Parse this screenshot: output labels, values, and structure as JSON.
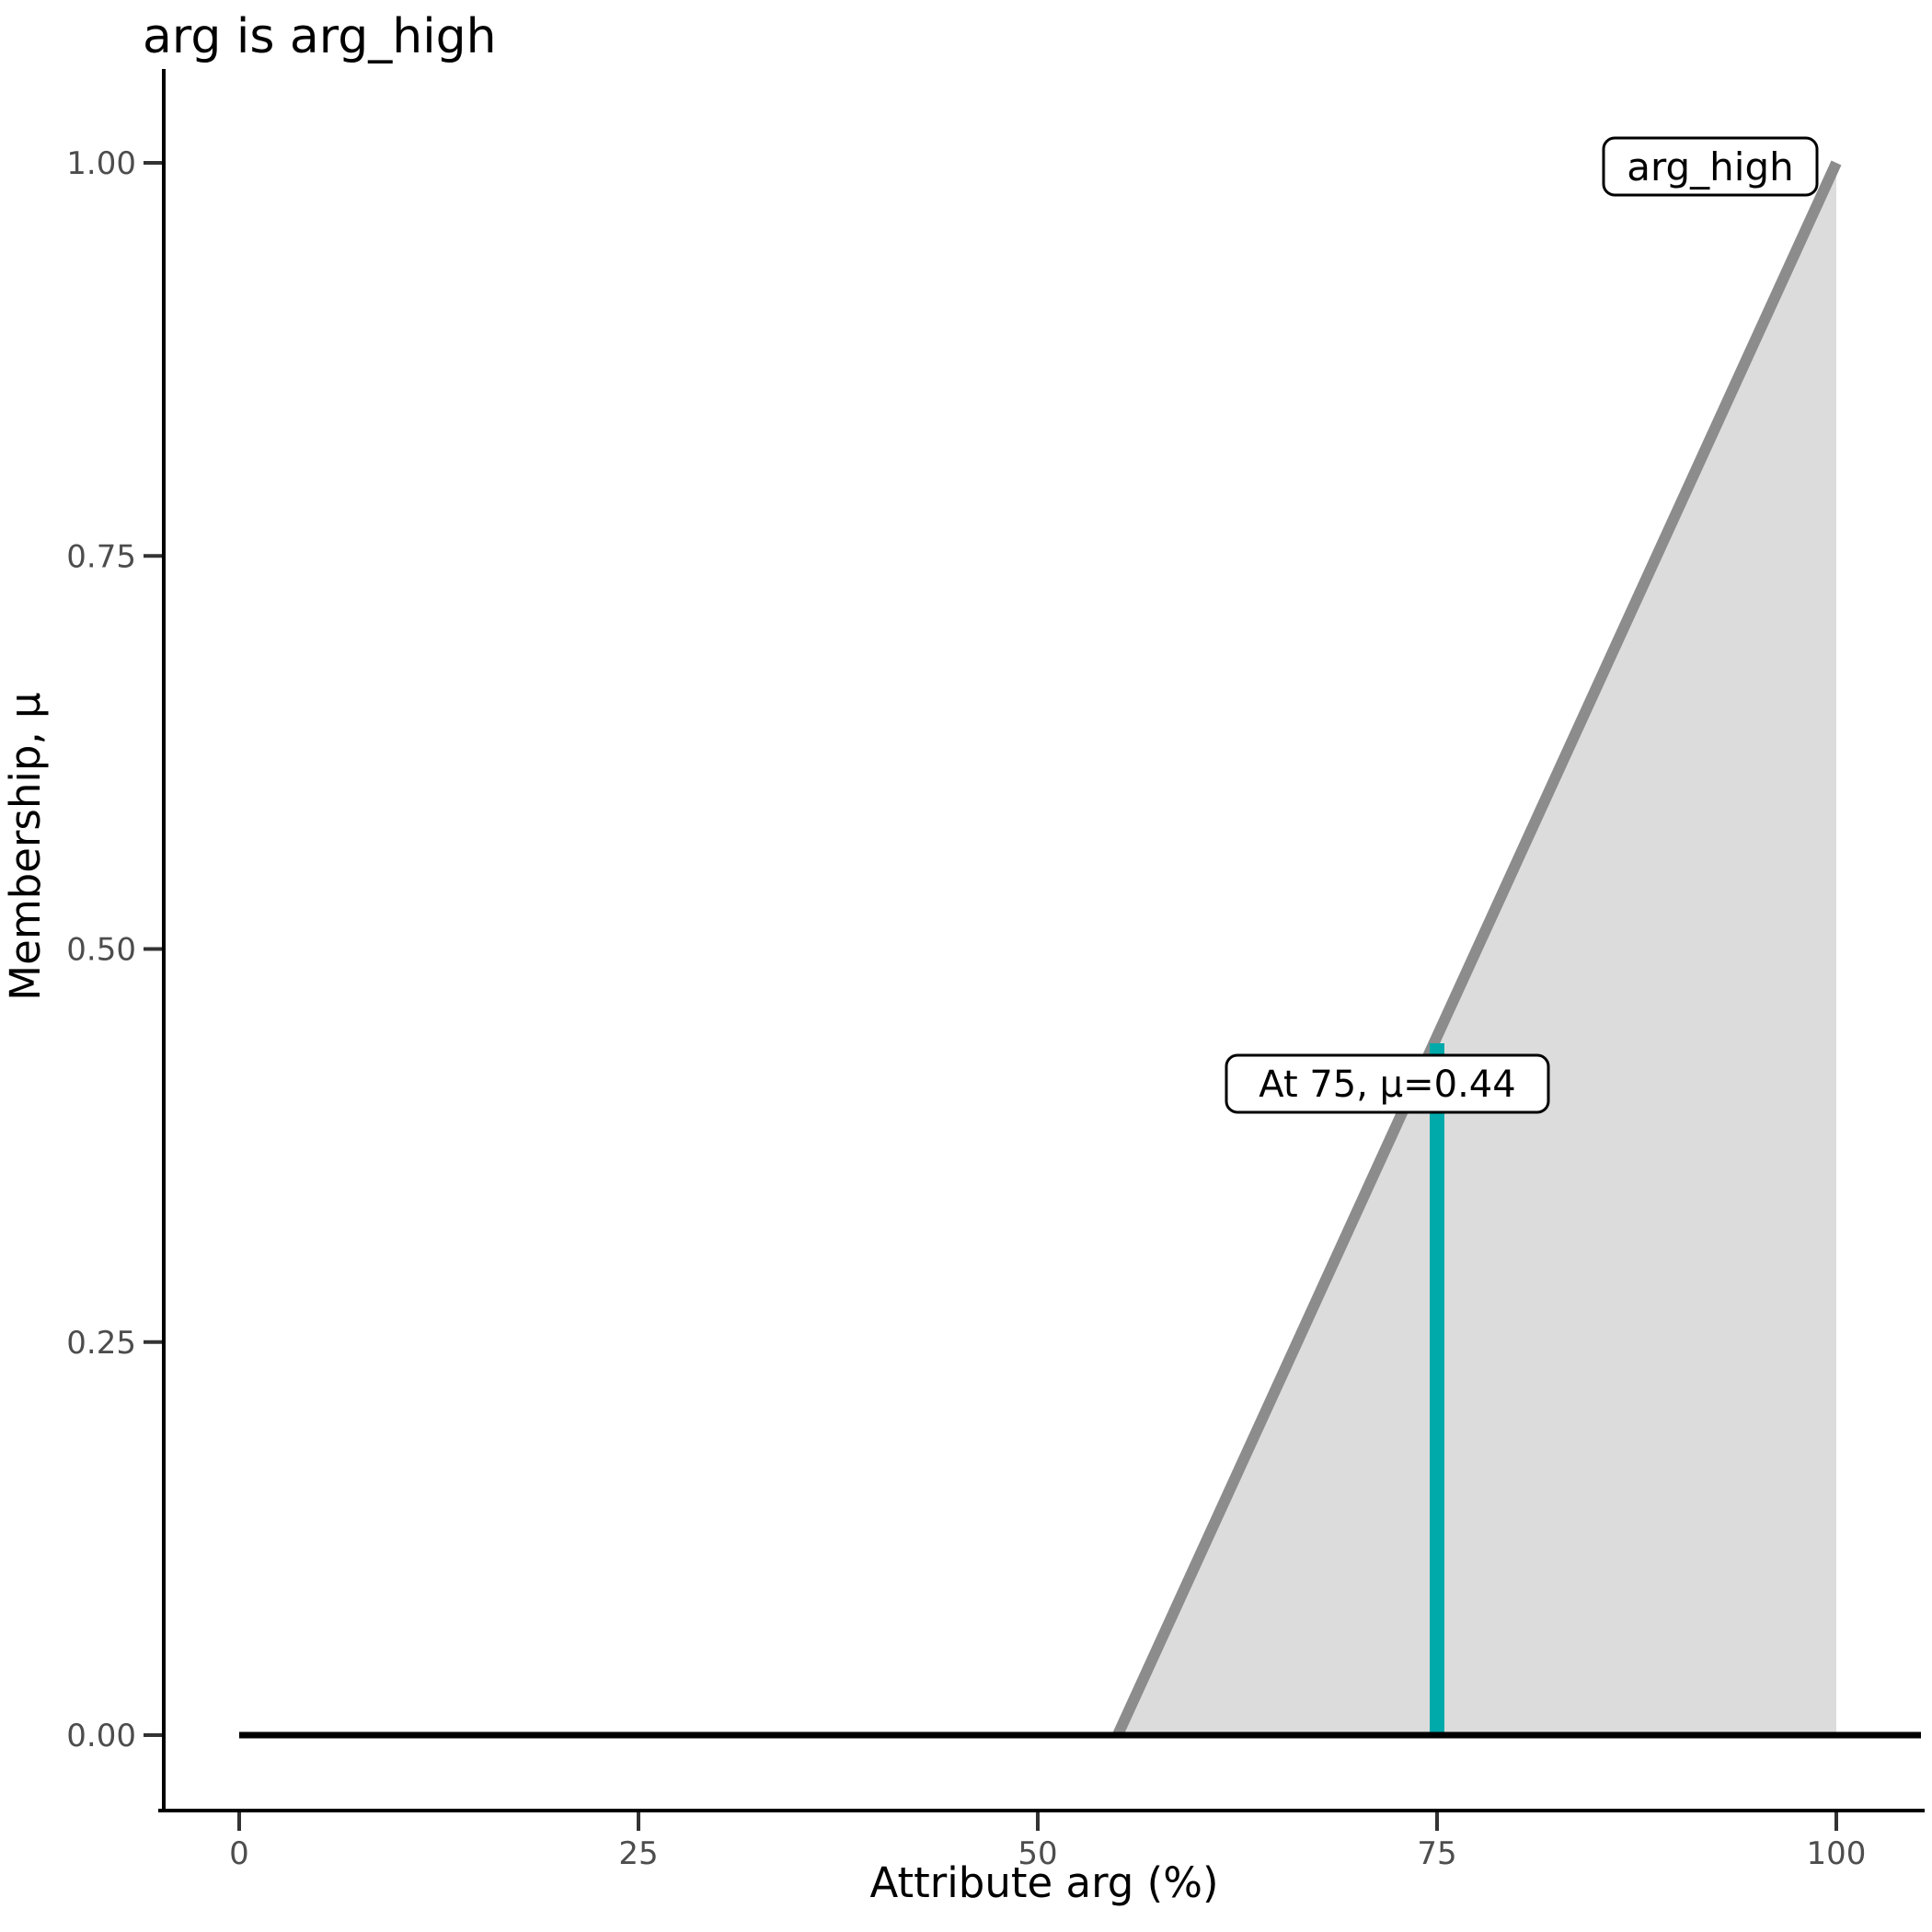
{
  "chart_data": {
    "type": "area",
    "title": "arg is arg_high",
    "xlabel": "Attribute arg (%)",
    "ylabel": "Membership, μ",
    "xlim": [
      0,
      100
    ],
    "ylim": [
      0,
      1
    ],
    "x_ticks": [
      0,
      25,
      50,
      75,
      100
    ],
    "y_ticks": [
      "0.00",
      "0.25",
      "0.50",
      "0.75",
      "1.00"
    ],
    "grid": "off",
    "legend": "none",
    "fuzzy_set": {
      "name": "arg_high",
      "ramp_points": [
        [
          55,
          0
        ],
        [
          100,
          1
        ]
      ],
      "line_color": "#8C8C8C",
      "fill_color": "#DCDCDC"
    },
    "baseline": {
      "y": 0,
      "color": "#000000"
    },
    "marker": {
      "x": 75,
      "mu": 0.44,
      "label": "At 75, μ=0.44",
      "color": "#00AAAB"
    },
    "set_label": {
      "text": "arg_high"
    },
    "axis_color": "#000000",
    "tick_label_color": "#4d4d4d"
  }
}
